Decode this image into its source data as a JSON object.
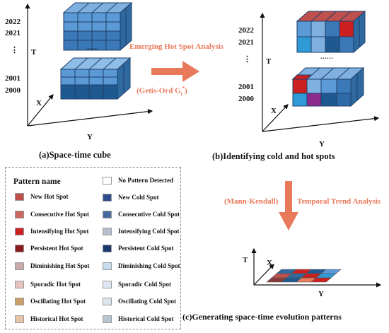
{
  "cube_a": {
    "years_top": [
      "2022",
      "2021"
    ],
    "ellipsis": "⋮",
    "years_bottom": [
      "2001",
      "2000"
    ],
    "t_label": "T",
    "x_label": "X",
    "y_label": "Y",
    "dots": "……"
  },
  "cube_b": {
    "years_top": [
      "2022",
      "2021"
    ],
    "ellipsis": "⋮",
    "years_bottom": [
      "2001",
      "2000"
    ],
    "t_label": "T",
    "x_label": "X",
    "y_label": "Y",
    "dots": "……"
  },
  "arrow_top": {
    "line1": "Emerging Hot Spot Analysis",
    "line2": "(Getis-Ord G",
    "sub": "i",
    "sup": "*",
    "close": ")"
  },
  "captions": {
    "a": "(a)Space-time cube",
    "b": "(b)Identifying cold and hot spots",
    "c": "(c)Generating space-time evolution patterns"
  },
  "arrow_down": {
    "left": "(Mann-Kendall)",
    "right": "Temporal Trend Analysis"
  },
  "plane_c": {
    "t_label": "T",
    "x_label": "X",
    "y_label": "Y"
  },
  "legend": {
    "title": "Pattern name",
    "left": [
      "New Hot Spot",
      "Consecutive Hot Spot",
      "Intensifying Hot Spot",
      "Persistent Hot Spot",
      "Diminishing Hot Spot",
      "Sporadic Hot Spot",
      "Oscillating Hot Spot",
      "Historical Hot Spot"
    ],
    "right": [
      "No Pattern Detected",
      "New Cold Spot",
      "Consecutive Cold Spot",
      "Intensifying Cold Spot",
      "Persistent Cold Spot",
      "Diminishing Cold Spot",
      "Sporadic Cold Spot",
      "Oscillating Cold Spot",
      "Historical Cold Spot"
    ],
    "left_colors": [
      "#c0504d",
      "#c9685f",
      "#cc1f1f",
      "#8b1a1a",
      "#c9a9a9",
      "#e8c4c0",
      "#c9a06a",
      "#e6c4a6"
    ],
    "right_colors": [
      "#ffffff",
      "#2e4d8f",
      "#466a9e",
      "#b8c0cf",
      "#1a3a6b",
      "#c8dcef",
      "#dde7f3",
      "#dce4f0",
      "#b8c6d4"
    ]
  }
}
